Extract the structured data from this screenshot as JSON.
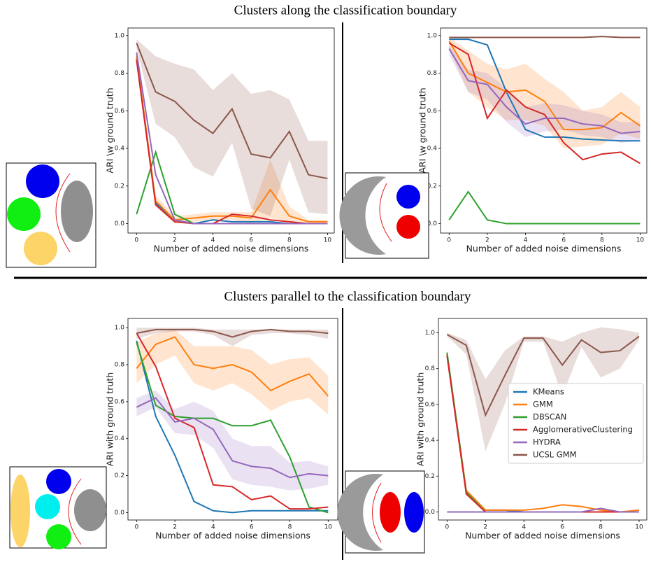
{
  "header": {
    "top_title": "Clusters along the classification boundary",
    "bottom_title": "Clusters parallel to the classification boundary"
  },
  "chart_data": [
    {
      "type": "line",
      "ylabel": "ARI \\w ground truth",
      "xlabel": "Number of added noise dimensions",
      "x": [
        0,
        1,
        2,
        3,
        4,
        5,
        6,
        7,
        8,
        9,
        10
      ],
      "xlim": [
        -0.45,
        10.35
      ],
      "xticks": [
        0,
        2,
        4,
        6,
        8,
        10
      ],
      "ylim": [
        -0.05,
        1.04
      ],
      "yticks": [
        {
          "value": 0,
          "label": "0.0"
        },
        {
          "value": 0.2,
          "label": "0.2"
        },
        {
          "value": 0.4,
          "label": "0.4"
        },
        {
          "value": 0.6,
          "label": "0.6"
        },
        {
          "value": 0.8,
          "label": "0.8"
        },
        {
          "value": 1,
          "label": "1.0"
        }
      ],
      "series": [
        {
          "color": "#1f77b4",
          "values": [
            0.88,
            0.11,
            0.02,
            0.0,
            0.02,
            0.01,
            0.01,
            0.01,
            0.0,
            0.0,
            0.0
          ]
        },
        {
          "color": "#ff7f0e",
          "values": [
            0.89,
            0.12,
            0.02,
            0.03,
            0.04,
            0.04,
            0.03,
            0.18,
            0.04,
            0.01,
            0.01
          ],
          "upper": [
            0.9,
            0.15,
            0.04,
            0.05,
            0.06,
            0.06,
            0.06,
            0.34,
            0.09,
            0.02,
            0.02
          ],
          "lower": [
            0.88,
            0.09,
            0.0,
            0.01,
            0.02,
            0.02,
            0.0,
            0.03,
            0.0,
            0.0,
            0.0
          ]
        },
        {
          "color": "#2ca02c",
          "values": [
            0.05,
            0.38,
            0.05,
            0.0,
            0.0,
            0.0,
            0.0,
            0.0,
            0.0,
            0.0,
            0.0
          ]
        },
        {
          "color": "#d62728",
          "values": [
            0.87,
            0.1,
            0.01,
            0.0,
            0.0,
            0.05,
            0.04,
            0.02,
            0.01,
            0.0,
            0.0
          ]
        },
        {
          "color": "#9467bd",
          "values": [
            0.91,
            0.26,
            0.02,
            0.0,
            0.0,
            0.0,
            0.0,
            0.0,
            0.0,
            0.0,
            0.0
          ]
        },
        {
          "color": "#8c564b",
          "values": [
            0.96,
            0.7,
            0.65,
            0.55,
            0.48,
            0.61,
            0.37,
            0.35,
            0.49,
            0.26,
            0.24
          ],
          "upper": [
            0.98,
            0.89,
            0.85,
            0.82,
            0.71,
            0.8,
            0.69,
            0.71,
            0.66,
            0.44,
            0.44
          ],
          "lower": [
            0.93,
            0.53,
            0.46,
            0.3,
            0.25,
            0.43,
            0.08,
            0.04,
            0.34,
            0.06,
            0.05
          ]
        }
      ]
    },
    {
      "type": "line",
      "ylabel": "ARI \\w ground truth",
      "xlabel": "Number of added noise dimensions",
      "x": [
        0,
        1,
        2,
        3,
        4,
        5,
        6,
        7,
        8,
        9,
        10
      ],
      "xlim": [
        -0.45,
        10.35
      ],
      "xticks": [
        0,
        2,
        4,
        6,
        8,
        10
      ],
      "ylim": [
        -0.05,
        1.04
      ],
      "yticks": [
        {
          "value": 0,
          "label": "0.0"
        },
        {
          "value": 0.2,
          "label": "0.2"
        },
        {
          "value": 0.4,
          "label": "0.4"
        },
        {
          "value": 0.6,
          "label": "0.6"
        },
        {
          "value": 0.8,
          "label": "0.8"
        },
        {
          "value": 1,
          "label": "1.0"
        }
      ],
      "series": [
        {
          "color": "#1f77b4",
          "values": [
            0.98,
            0.98,
            0.95,
            0.7,
            0.5,
            0.46,
            0.46,
            0.45,
            0.445,
            0.44,
            0.44
          ]
        },
        {
          "color": "#ff7f0e",
          "values": [
            0.97,
            0.8,
            0.75,
            0.7,
            0.71,
            0.65,
            0.5,
            0.5,
            0.51,
            0.59,
            0.52
          ],
          "upper": [
            0.99,
            0.92,
            0.85,
            0.82,
            0.85,
            0.77,
            0.7,
            0.6,
            0.62,
            0.7,
            0.62
          ],
          "lower": [
            0.93,
            0.7,
            0.62,
            0.55,
            0.55,
            0.52,
            0.4,
            0.41,
            0.42,
            0.48,
            0.45
          ]
        },
        {
          "color": "#2ca02c",
          "values": [
            0.02,
            0.17,
            0.02,
            0.0,
            0.0,
            0.0,
            0.0,
            0.0,
            0.0,
            0.0,
            0.0
          ]
        },
        {
          "color": "#d62728",
          "values": [
            0.96,
            0.9,
            0.56,
            0.71,
            0.62,
            0.58,
            0.43,
            0.34,
            0.37,
            0.38,
            0.32
          ]
        },
        {
          "color": "#9467bd",
          "values": [
            0.93,
            0.76,
            0.74,
            0.62,
            0.53,
            0.56,
            0.56,
            0.53,
            0.52,
            0.48,
            0.49
          ],
          "upper": [
            0.95,
            0.82,
            0.8,
            0.72,
            0.62,
            0.64,
            0.63,
            0.6,
            0.58,
            0.54,
            0.54
          ],
          "lower": [
            0.9,
            0.7,
            0.66,
            0.54,
            0.46,
            0.49,
            0.5,
            0.47,
            0.46,
            0.43,
            0.44
          ]
        },
        {
          "color": "#8c564b",
          "values": [
            0.99,
            0.99,
            0.99,
            0.99,
            0.99,
            0.99,
            0.99,
            0.99,
            0.995,
            0.99,
            0.99
          ]
        }
      ]
    },
    {
      "type": "line",
      "ylabel": "ARI with ground truth",
      "xlabel": "Number of added noise dimensions",
      "x": [
        0,
        1,
        2,
        3,
        4,
        5,
        6,
        7,
        8,
        9,
        10
      ],
      "xlim": [
        -0.45,
        10.5
      ],
      "xticks": [
        0,
        2,
        4,
        6,
        8,
        10
      ],
      "ylim": [
        -0.04,
        1.05
      ],
      "yticks": [
        {
          "value": 0,
          "label": "0.0"
        },
        {
          "value": 0.2,
          "label": "0.2"
        },
        {
          "value": 0.4,
          "label": "0.4"
        },
        {
          "value": 0.6,
          "label": "0.6"
        },
        {
          "value": 0.8,
          "label": "0.8"
        },
        {
          "value": 1,
          "label": "1.0"
        }
      ],
      "series": [
        {
          "color": "#1f77b4",
          "values": [
            0.93,
            0.52,
            0.31,
            0.06,
            0.01,
            0.0,
            0.01,
            0.01,
            0.01,
            0.01,
            0.01
          ]
        },
        {
          "color": "#ff7f0e",
          "values": [
            0.78,
            0.91,
            0.95,
            0.8,
            0.78,
            0.8,
            0.76,
            0.66,
            0.71,
            0.75,
            0.63
          ],
          "upper": [
            0.92,
            0.97,
            0.99,
            0.9,
            0.9,
            0.9,
            0.88,
            0.8,
            0.83,
            0.84,
            0.74
          ],
          "lower": [
            0.7,
            0.8,
            0.85,
            0.7,
            0.66,
            0.7,
            0.64,
            0.55,
            0.6,
            0.62,
            0.53
          ]
        },
        {
          "color": "#2ca02c",
          "values": [
            0.92,
            0.58,
            0.52,
            0.51,
            0.51,
            0.47,
            0.47,
            0.5,
            0.3,
            0.03,
            0.0
          ]
        },
        {
          "color": "#d62728",
          "values": [
            0.97,
            0.79,
            0.51,
            0.46,
            0.15,
            0.14,
            0.07,
            0.09,
            0.02,
            0.02,
            0.03
          ]
        },
        {
          "color": "#9467bd",
          "values": [
            0.57,
            0.62,
            0.49,
            0.51,
            0.45,
            0.28,
            0.25,
            0.24,
            0.19,
            0.21,
            0.2
          ],
          "upper": [
            0.62,
            0.66,
            0.56,
            0.6,
            0.55,
            0.4,
            0.36,
            0.36,
            0.27,
            0.28,
            0.25
          ],
          "lower": [
            0.52,
            0.57,
            0.43,
            0.42,
            0.35,
            0.18,
            0.15,
            0.14,
            0.12,
            0.13,
            0.15
          ]
        },
        {
          "color": "#8c564b",
          "values": [
            0.97,
            0.99,
            0.99,
            0.99,
            0.98,
            0.95,
            0.98,
            0.99,
            0.98,
            0.98,
            0.97
          ],
          "upper": [
            1.0,
            1.0,
            1.0,
            1.0,
            0.99,
            0.99,
            0.99,
            0.99,
            0.99,
            0.99,
            0.99
          ],
          "lower": [
            0.94,
            0.97,
            0.98,
            0.98,
            0.96,
            0.9,
            0.96,
            0.97,
            0.97,
            0.96,
            0.94
          ]
        }
      ]
    },
    {
      "type": "line",
      "ylabel": "ARI with ground truth",
      "xlabel": "Number of added noise dimensions",
      "x": [
        0,
        1,
        2,
        3,
        4,
        5,
        6,
        7,
        8,
        9,
        10
      ],
      "xlim": [
        -0.45,
        10.4
      ],
      "xticks": [
        0,
        2,
        4,
        6,
        8,
        10
      ],
      "ylim": [
        -0.045,
        1.08
      ],
      "yticks": [
        {
          "value": 0,
          "label": "0.0"
        },
        {
          "value": 0.2,
          "label": "0.2"
        },
        {
          "value": 0.4,
          "label": "0.4"
        },
        {
          "value": 0.6,
          "label": "0.6"
        },
        {
          "value": 0.8,
          "label": "0.8"
        },
        {
          "value": 1,
          "label": "1.0"
        }
      ],
      "legend": "center right",
      "series": [
        {
          "name": "KMeans",
          "color": "#1f77b4",
          "values": [
            0.88,
            0.11,
            0.01,
            0.01,
            0.0,
            0.0,
            0.0,
            0.0,
            0.0,
            0.0,
            0.0
          ]
        },
        {
          "name": "GMM",
          "color": "#ff7f0e",
          "values": [
            0.88,
            0.12,
            0.01,
            0.01,
            0.01,
            0.02,
            0.04,
            0.03,
            0.01,
            0.0,
            0.01
          ]
        },
        {
          "name": "DBSCAN",
          "color": "#2ca02c",
          "values": [
            0.89,
            0.11,
            0.0,
            0.0,
            0.0,
            0.0,
            0.0,
            0.0,
            0.0,
            0.0,
            0.0
          ]
        },
        {
          "name": "AgglomerativeClustering",
          "color": "#d62728",
          "values": [
            0.87,
            0.1,
            0.0,
            0.0,
            0.0,
            0.0,
            0.0,
            0.0,
            0.0,
            0.0,
            0.0
          ]
        },
        {
          "name": "HYDRA",
          "color": "#9467bd",
          "values": [
            0.0,
            0.0,
            0.0,
            0.0,
            0.0,
            0.0,
            0.0,
            0.0,
            0.02,
            0.0,
            0.0
          ]
        },
        {
          "name": "UCSL GMM",
          "color": "#8c564b",
          "values": [
            0.99,
            0.93,
            0.54,
            0.76,
            0.97,
            0.97,
            0.82,
            0.96,
            0.89,
            0.9,
            0.98
          ],
          "upper": [
            1.0,
            0.96,
            0.74,
            0.9,
            0.98,
            0.98,
            0.95,
            1.0,
            1.03,
            1.02,
            1.0
          ],
          "lower": [
            0.98,
            0.88,
            0.34,
            0.6,
            0.95,
            0.95,
            0.65,
            0.92,
            0.75,
            0.8,
            0.96
          ]
        }
      ]
    }
  ]
}
